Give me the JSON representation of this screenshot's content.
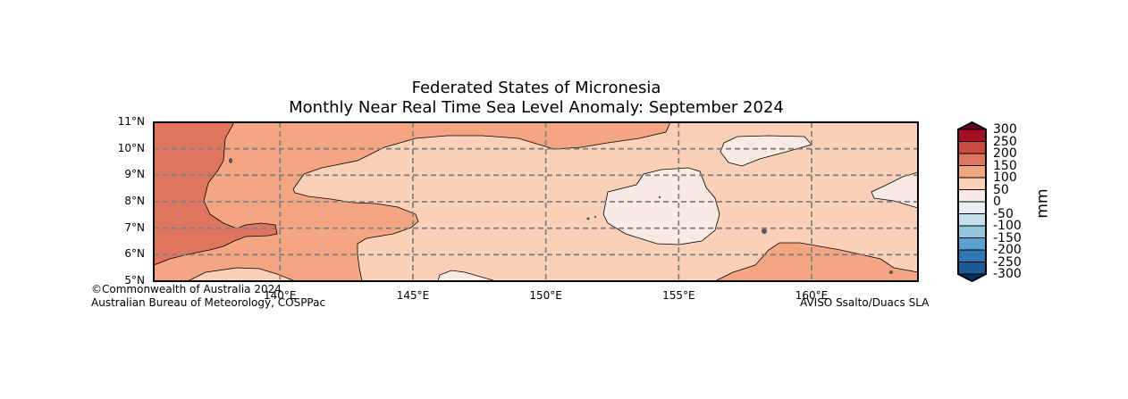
{
  "chart_data": {
    "type": "contour-map",
    "title": "Federated States of Micronesia",
    "subtitle": "Monthly Near Real Time Sea Level Anomaly: September 2024",
    "xlim": [
      135.25,
      164
    ],
    "ylim": [
      5,
      11
    ],
    "x_ticks": [
      "140°E",
      "145°E",
      "150°E",
      "155°E",
      "160°E"
    ],
    "y_ticks": [
      "11°N",
      "10°N",
      "9°N",
      "8°N",
      "7°N",
      "6°N",
      "5°N"
    ],
    "grid": true,
    "colorbar": {
      "label": "mm",
      "levels": [
        "300",
        "250",
        "200",
        "150",
        "100",
        "50",
        "0",
        "-50",
        "-100",
        "-150",
        "-200",
        "-250",
        "-300"
      ],
      "colors": [
        "#a50f26",
        "#cb4a42",
        "#e0755f",
        "#f4a582",
        "#fbd0b8",
        "#f9ebe3",
        "#e8eff3",
        "#c6dfec",
        "#92c5de",
        "#5aa1cd",
        "#2f78b5",
        "#1c5a98"
      ],
      "extend_colors": [
        "#67001f",
        "#053061"
      ]
    },
    "regions": [
      {
        "range": "150 to 200",
        "location": "western edge 135-138°E"
      },
      {
        "range": "100 to 150",
        "location": "central-west and south-east"
      },
      {
        "range": "50 to 100",
        "location": "most of central and eastern area"
      },
      {
        "range": "0 to 50",
        "location": "around 153-156°E 7-9°N, 157-160°E 10°N, east edge 8.5°N"
      }
    ]
  },
  "footer": {
    "copyright": "©Commonwealth of Australia 2024",
    "org": "Australian Bureau of Meteorology, COSPPac",
    "source": "AVISO Ssalto/Duacs SLA"
  }
}
